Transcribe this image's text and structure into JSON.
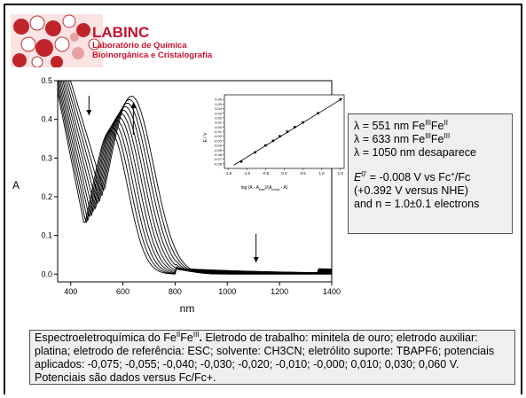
{
  "header": {
    "brand_name": "LABINC",
    "brand_line1": "Laboratório de Química",
    "brand_line2": "Bioinorgânica e Cristalografia"
  },
  "colors": {
    "brand": "#c8102e",
    "box_bg": "#efefef",
    "line": "#000000"
  },
  "chart_data": [
    {
      "type": "line",
      "title": "",
      "xlabel": "nm",
      "ylabel": "A",
      "xlim": [
        350,
        1400
      ],
      "ylim": [
        -0.02,
        0.5
      ],
      "x_ticks": [
        400,
        600,
        800,
        1000,
        1200,
        1400
      ],
      "y_ticks": [
        0.0,
        0.1,
        0.2,
        0.3,
        0.4,
        0.5
      ],
      "x_tick_labels": [
        "400",
        "600",
        "800",
        "1000",
        "1200",
        "1400"
      ],
      "y_tick_labels": [
        "0.0",
        "0.1",
        "0.2",
        "0.3",
        "0.4",
        "0.5"
      ],
      "series_count": 11,
      "series_peak_start": {
        "x": 551,
        "y": 0.38
      },
      "series_peak_end": {
        "x": 633,
        "y": 0.47
      },
      "series_min_at_400nm": {
        "start": 0.35,
        "end": 0.49
      },
      "minimum_near": 470,
      "arrows": [
        {
          "x": 470,
          "direction": "down"
        },
        {
          "x": 640,
          "direction": "up"
        },
        {
          "x": 1110,
          "direction": "down"
        }
      ]
    },
    {
      "type": "scatter",
      "title": "",
      "xlabel": "log (A - A",
      "xlabel_sub1": "final",
      "xlabel_mid": ")/(A",
      "xlabel_sub2": "inicial",
      "xlabel_end": " - A)",
      "ylabel": "E / V",
      "xlim": [
        -1.6,
        1.6
      ],
      "ylim": [
        -0.09,
        0.07
      ],
      "x_tick_labels": [
        "-1.5",
        "-1.0",
        "-0.5",
        "0.0",
        "0.5",
        "1.0",
        "1.5"
      ],
      "y_tick_labels": [
        "0.06",
        "0.05",
        "0.04",
        "0.03",
        "0.02",
        "0.01",
        "0.00",
        "-0.01",
        "-0.02",
        "-0.03",
        "-0.04",
        "-0.05",
        "-0.06",
        "-0.07",
        "-0.08"
      ],
      "points": [
        {
          "x": -1.15,
          "y": -0.075
        },
        {
          "x": -0.78,
          "y": -0.055
        },
        {
          "x": -0.5,
          "y": -0.04
        },
        {
          "x": -0.3,
          "y": -0.03
        },
        {
          "x": -0.12,
          "y": -0.02
        },
        {
          "x": 0.08,
          "y": -0.01
        },
        {
          "x": 0.28,
          "y": 0.0
        },
        {
          "x": 0.5,
          "y": 0.01
        },
        {
          "x": 0.9,
          "y": 0.03
        },
        {
          "x": 1.5,
          "y": 0.06
        }
      ],
      "fit_line": {
        "x": [
          -1.35,
          1.55
        ],
        "y": [
          -0.083,
          0.062
        ]
      }
    }
  ],
  "info_box": {
    "line1": "λ = 551 nm Fe",
    "line1_sup1": "III",
    "line1_mid": "Fe",
    "line1_sup2": "II",
    "line2": "λ = 633 nm Fe",
    "line2_sup1": "III",
    "line2_mid": "Fe",
    "line2_sup2": "III",
    "line3": "λ = 1050 nm desaparece",
    "line4_e": "E",
    "line4_sup": "0'",
    "line4_rest": " = -0.008 V vs Fc",
    "line4_plus": "+",
    "line4_end": "/Fc",
    "line5": "(+0.392 V versus NHE)",
    "line6": "and n = 1.0±0.1 electrons"
  },
  "caption": {
    "p1": "Espectroeletroquímica do Fe",
    "sup1": "II",
    "p2": "Fe",
    "sup2": "III",
    "p3": ".",
    "p4": " Eletrodo de trabalho: minitela de ouro; eletrodo auxiliar: platina; eletrodo de referência: ESC; solvente: CH3CN; eletrólito suporte: TBAPF6; potenciais aplicados: -0,075; -0,055; -0,040; -0,030; -0,020; -0,010; -0,000; 0,010; 0,030; 0,060 V. Potenciais são dados versus Fc/Fc+."
  }
}
